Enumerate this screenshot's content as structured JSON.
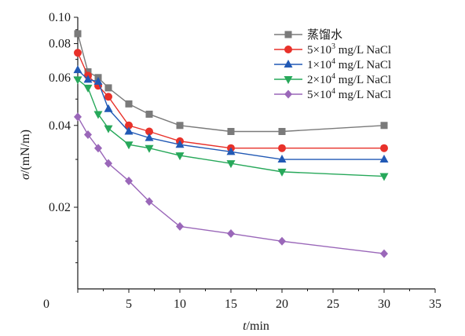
{
  "chart_data": {
    "type": "line",
    "xlabel_italic": "t",
    "xlabel_unit": "/min",
    "ylabel_italic": "σ",
    "ylabel_unit": "/(mN/m)",
    "xlim": [
      0,
      35
    ],
    "ylim": [
      0,
      0.1
    ],
    "y_scale": "log",
    "x_ticks": [
      "0",
      "5",
      "10",
      "15",
      "20",
      "25",
      "30",
      "35"
    ],
    "y_ticks": [
      "0.02",
      "0.04",
      "0.06",
      "0.08",
      "0.10"
    ],
    "grid": false,
    "legend_position": "top-right",
    "x": [
      0,
      1,
      2,
      3,
      5,
      7,
      10,
      15,
      20,
      30
    ],
    "series": [
      {
        "name": "蒸馏水",
        "label_main": "蒸馏水",
        "label_sup": "",
        "label_tail": "",
        "color": "#7a7a7a",
        "marker": "square",
        "values": [
          0.087,
          0.063,
          0.06,
          0.055,
          0.048,
          0.044,
          0.04,
          0.038,
          0.038,
          0.04
        ]
      },
      {
        "name": "5×10³ mg/L NaCl",
        "label_main": "5×10",
        "label_sup": "3",
        "label_tail": " mg/L NaCl",
        "color": "#e8312a",
        "marker": "circle",
        "values": [
          0.074,
          0.061,
          0.056,
          0.051,
          0.04,
          0.038,
          0.035,
          0.033,
          0.033,
          0.033
        ]
      },
      {
        "name": "1×10⁴ mg/L NaCl",
        "label_main": "1×10",
        "label_sup": "4",
        "label_tail": " mg/L NaCl",
        "color": "#2159b5",
        "marker": "triangle-up",
        "values": [
          0.064,
          0.059,
          0.058,
          0.046,
          0.038,
          0.036,
          0.034,
          0.032,
          0.03,
          0.03
        ]
      },
      {
        "name": "2×10⁴ mg/L NaCl",
        "label_main": "2×10",
        "label_sup": "4",
        "label_tail": " mg/L NaCl",
        "color": "#27a85a",
        "marker": "triangle-down",
        "values": [
          0.059,
          0.055,
          0.044,
          0.039,
          0.034,
          0.033,
          0.031,
          0.029,
          0.027,
          0.026
        ]
      },
      {
        "name": "5×10⁴ mg/L NaCl",
        "label_main": "5×10",
        "label_sup": "4",
        "label_tail": " mg/L NaCl",
        "color": "#9a67b9",
        "marker": "diamond",
        "values": [
          0.043,
          0.037,
          0.033,
          0.029,
          0.025,
          0.021,
          0.017,
          0.016,
          0.015,
          0.0135
        ]
      }
    ]
  }
}
